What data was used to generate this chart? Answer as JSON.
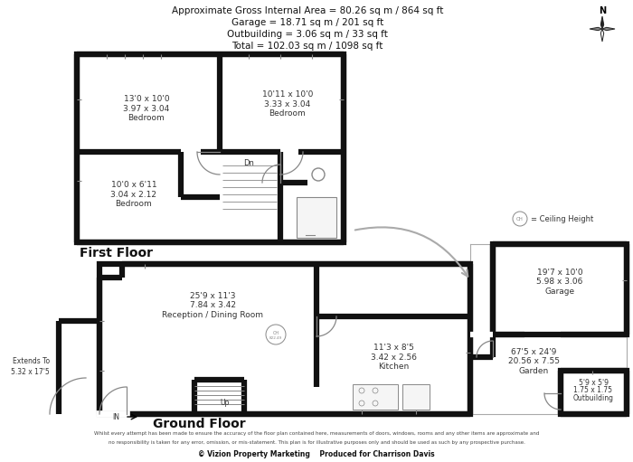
{
  "title_lines": [
    "Approximate Gross Internal Area = 80.26 sq m / 864 sq ft",
    "Garage = 18.71 sq m / 201 sq ft",
    "Outbuilding = 3.06 sq m / 33 sq ft",
    "Total = 102.03 sq m / 1098 sq ft"
  ],
  "footer_line1": "Whilst every attempt has been made to ensure the accuracy of the floor plan contained here, measurements of doors, windows, rooms and any other items are approximate and",
  "footer_line2": "no responsibility is taken for any error, omission, or mis-statement. This plan is for illustrative purposes only and should be used as such by any prospective purchase.",
  "footer_line3": "© Vizion Property Marketing    Produced for Charrison Davis",
  "first_floor_label": "First Floor",
  "ground_floor_label": "Ground Floor",
  "ceiling_height_label": "= Ceiling Height",
  "bg_color": "#ffffff",
  "wall_color": "#111111",
  "gray_color": "#888888",
  "text_color": "#333333",
  "lw_wall": 4.5,
  "lw_thin": 1.0,
  "lw_fixture": 0.8
}
